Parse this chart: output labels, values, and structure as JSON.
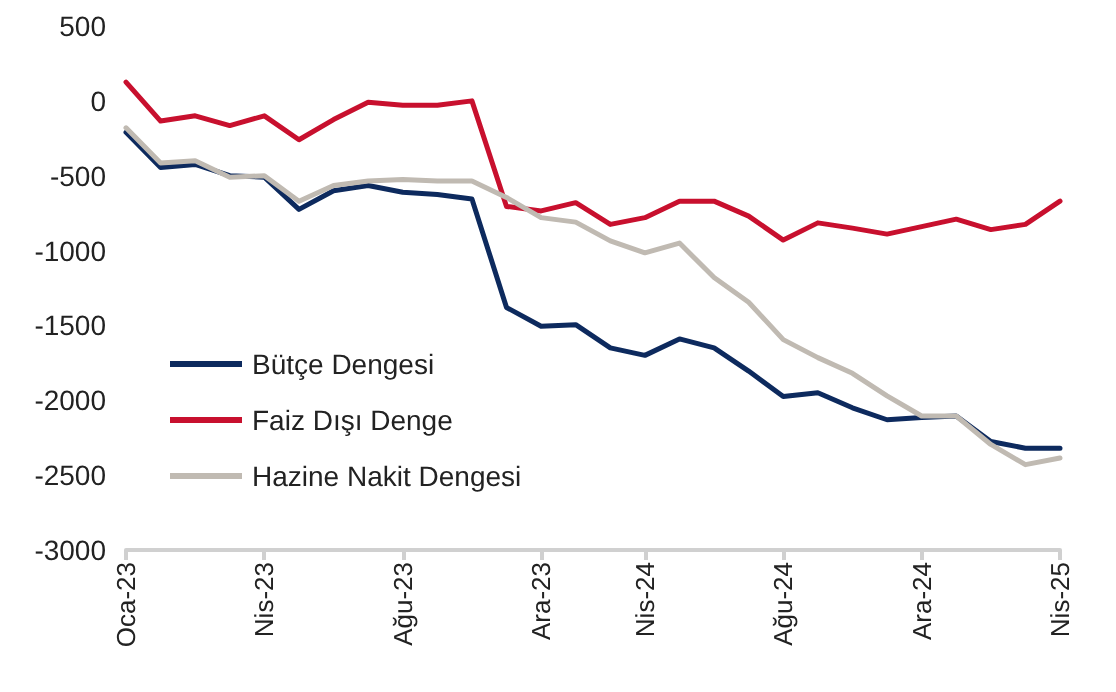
{
  "chart_data": {
    "type": "line",
    "categories": [
      "Oca-23",
      null,
      null,
      null,
      "Nis-23",
      null,
      null,
      null,
      "Ağu-23",
      null,
      null,
      null,
      "Ara-23",
      null,
      null,
      "Nis-24",
      null,
      null,
      null,
      "Ağu-24",
      null,
      null,
      null,
      "Ara-24",
      null,
      null,
      null,
      "Nis-25"
    ],
    "series": [
      {
        "name": "Bütçe Dengesi",
        "color": "#0d2a5e",
        "values": [
          -210,
          -445,
          -425,
          -500,
          -510,
          -725,
          -600,
          -565,
          -610,
          -625,
          -655,
          -1380,
          -1505,
          -1495,
          -1650,
          -1700,
          -1590,
          -1650,
          -1805,
          -1975,
          -1950,
          -2050,
          -2130,
          -2115,
          -2105,
          -2275,
          -2320,
          -2320
        ]
      },
      {
        "name": "Faiz Dışı Denge",
        "color": "#c8102e",
        "values": [
          125,
          -135,
          -100,
          -165,
          -100,
          -260,
          -125,
          -10,
          -30,
          -30,
          0,
          -705,
          -735,
          -680,
          -825,
          -780,
          -670,
          -670,
          -770,
          -930,
          -815,
          -850,
          -890,
          -840,
          -790,
          -860,
          -825,
          -670
        ]
      },
      {
        "name": "Hazine Nakit Dengesi",
        "color": "#c0bab2",
        "values": [
          -180,
          -415,
          -400,
          -510,
          -500,
          -670,
          -565,
          -535,
          -525,
          -535,
          -535,
          -645,
          -780,
          -810,
          -935,
          -1015,
          -950,
          -1180,
          -1345,
          -1595,
          -1715,
          -1820,
          -1970,
          -2105,
          -2105,
          -2295,
          -2430,
          -2385
        ]
      }
    ],
    "ylim": [
      -3000,
      500
    ],
    "yticks": [
      -3000,
      -2500,
      -2000,
      -1500,
      -1000,
      -500,
      0,
      500
    ],
    "grid": false,
    "legend": "bottom left",
    "marker": "none",
    "line_style": "solid"
  }
}
